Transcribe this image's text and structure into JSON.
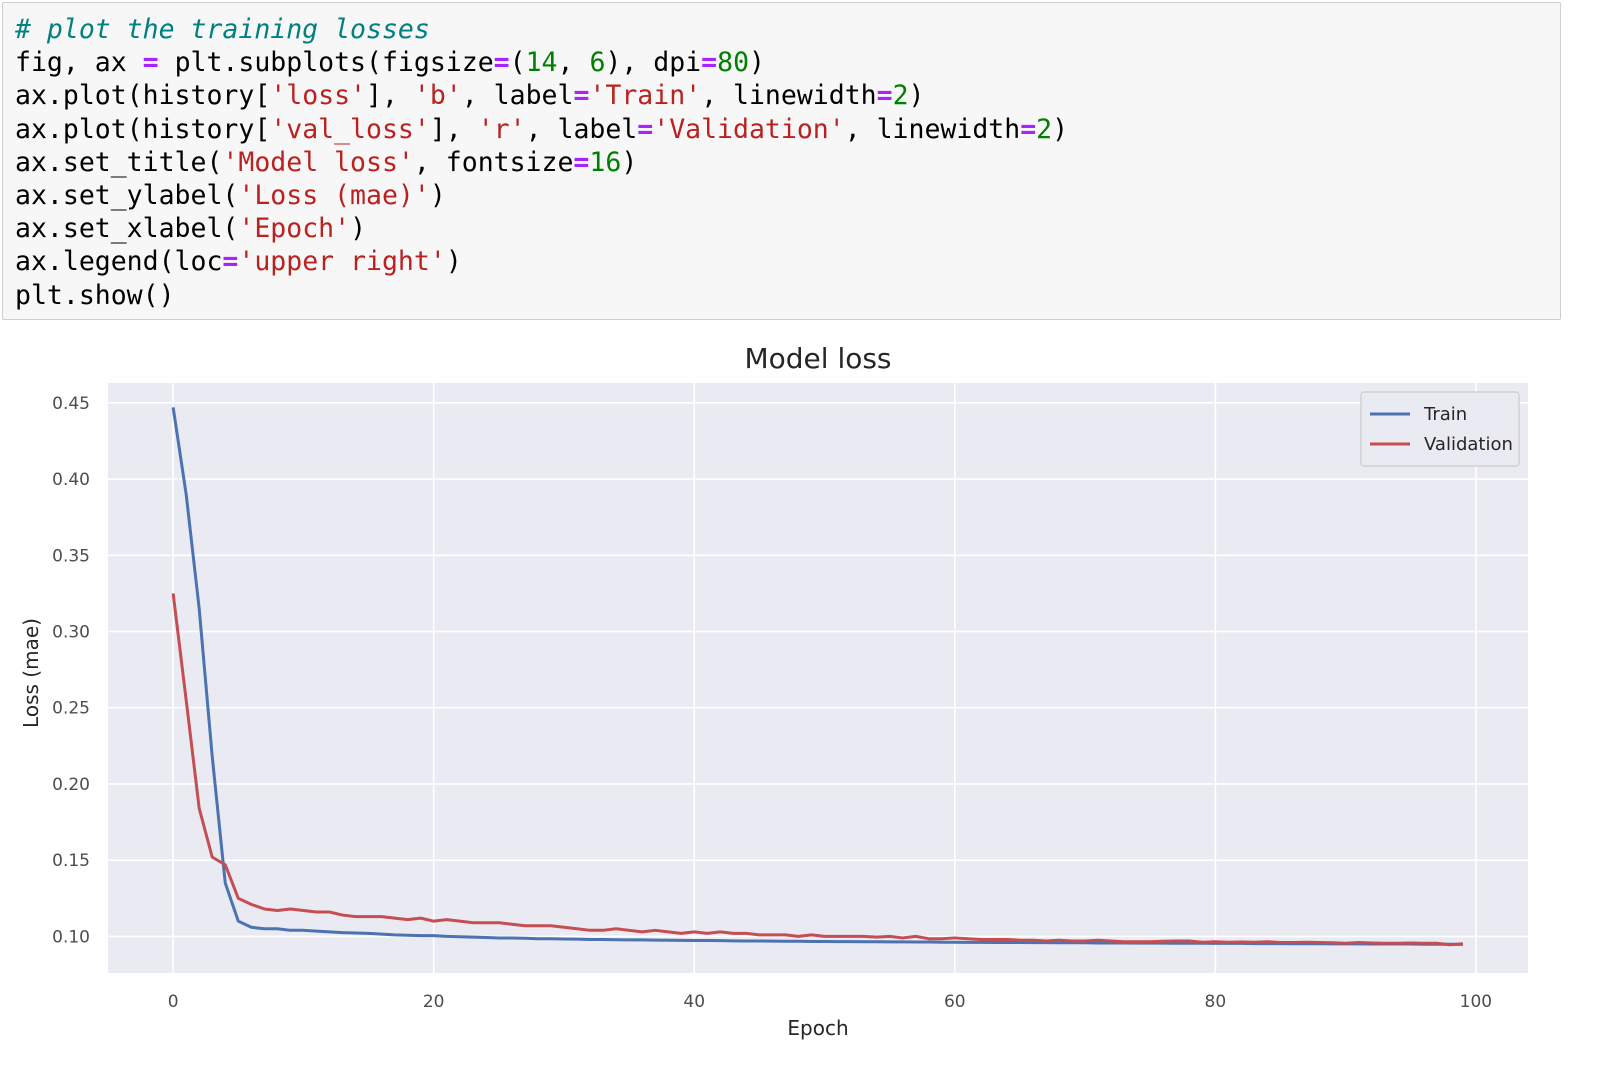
{
  "code_cell": {
    "lines": [
      [
        {
          "t": "# plot the training losses",
          "c": "comment"
        }
      ],
      [
        {
          "t": "fig, ax ",
          "c": "plain"
        },
        {
          "t": "=",
          "c": "op"
        },
        {
          "t": " plt.subplots(figsize",
          "c": "plain"
        },
        {
          "t": "=",
          "c": "op"
        },
        {
          "t": "(",
          "c": "plain"
        },
        {
          "t": "14",
          "c": "num"
        },
        {
          "t": ", ",
          "c": "plain"
        },
        {
          "t": "6",
          "c": "num"
        },
        {
          "t": "), dpi",
          "c": "plain"
        },
        {
          "t": "=",
          "c": "op"
        },
        {
          "t": "80",
          "c": "num"
        },
        {
          "t": ")",
          "c": "plain"
        }
      ],
      [
        {
          "t": "ax.plot(history[",
          "c": "plain"
        },
        {
          "t": "'loss'",
          "c": "str"
        },
        {
          "t": "], ",
          "c": "plain"
        },
        {
          "t": "'b'",
          "c": "str"
        },
        {
          "t": ", label",
          "c": "plain"
        },
        {
          "t": "=",
          "c": "op"
        },
        {
          "t": "'Train'",
          "c": "str"
        },
        {
          "t": ", linewidth",
          "c": "plain"
        },
        {
          "t": "=",
          "c": "op"
        },
        {
          "t": "2",
          "c": "num"
        },
        {
          "t": ")",
          "c": "plain"
        }
      ],
      [
        {
          "t": "ax.plot(history[",
          "c": "plain"
        },
        {
          "t": "'val_loss'",
          "c": "str"
        },
        {
          "t": "], ",
          "c": "plain"
        },
        {
          "t": "'r'",
          "c": "str"
        },
        {
          "t": ", label",
          "c": "plain"
        },
        {
          "t": "=",
          "c": "op"
        },
        {
          "t": "'Validation'",
          "c": "str"
        },
        {
          "t": ", linewidth",
          "c": "plain"
        },
        {
          "t": "=",
          "c": "op"
        },
        {
          "t": "2",
          "c": "num"
        },
        {
          "t": ")",
          "c": "plain"
        }
      ],
      [
        {
          "t": "ax.set_title(",
          "c": "plain"
        },
        {
          "t": "'Model loss'",
          "c": "str"
        },
        {
          "t": ", fontsize",
          "c": "plain"
        },
        {
          "t": "=",
          "c": "op"
        },
        {
          "t": "16",
          "c": "num"
        },
        {
          "t": ")",
          "c": "plain"
        }
      ],
      [
        {
          "t": "ax.set_ylabel(",
          "c": "plain"
        },
        {
          "t": "'Loss (mae)'",
          "c": "str"
        },
        {
          "t": ")",
          "c": "plain"
        }
      ],
      [
        {
          "t": "ax.set_xlabel(",
          "c": "plain"
        },
        {
          "t": "'Epoch'",
          "c": "str"
        },
        {
          "t": ")",
          "c": "plain"
        }
      ],
      [
        {
          "t": "ax.legend(loc",
          "c": "plain"
        },
        {
          "t": "=",
          "c": "op"
        },
        {
          "t": "'upper right'",
          "c": "str"
        },
        {
          "t": ")",
          "c": "plain"
        }
      ],
      [
        {
          "t": "plt.show()",
          "c": "plain"
        }
      ]
    ],
    "colors": {
      "comment": "#008080",
      "op": "#aa22ff",
      "str": "#ba2121",
      "num": "#008000",
      "plain": "#000000",
      "background": "#f7f7f7"
    }
  },
  "chart_data": {
    "type": "line",
    "title": "Model loss",
    "xlabel": "Epoch",
    "ylabel": "Loss (mae)",
    "xlim": [
      -5,
      104
    ],
    "ylim": [
      0.076,
      0.463
    ],
    "xticks": [
      0,
      20,
      40,
      60,
      80,
      100
    ],
    "yticks": [
      0.1,
      0.15,
      0.2,
      0.25,
      0.3,
      0.35,
      0.4,
      0.45
    ],
    "xtick_labels": [
      "0",
      "20",
      "40",
      "60",
      "80",
      "100"
    ],
    "ytick_labels": [
      "0.10",
      "0.15",
      "0.20",
      "0.25",
      "0.30",
      "0.35",
      "0.40",
      "0.45"
    ],
    "grid": true,
    "legend_position": "top-right",
    "background_color": "#eaeaf2",
    "x": [
      0,
      1,
      2,
      3,
      4,
      5,
      6,
      7,
      8,
      9,
      10,
      11,
      12,
      13,
      14,
      15,
      16,
      17,
      18,
      19,
      20,
      21,
      22,
      23,
      24,
      25,
      26,
      27,
      28,
      29,
      30,
      31,
      32,
      33,
      34,
      35,
      36,
      37,
      38,
      39,
      40,
      41,
      42,
      43,
      44,
      45,
      46,
      47,
      48,
      49,
      50,
      51,
      52,
      53,
      54,
      55,
      56,
      57,
      58,
      59,
      60,
      61,
      62,
      63,
      64,
      65,
      66,
      67,
      68,
      69,
      70,
      71,
      72,
      73,
      74,
      75,
      76,
      77,
      78,
      79,
      80,
      81,
      82,
      83,
      84,
      85,
      86,
      87,
      88,
      89,
      90,
      91,
      92,
      93,
      94,
      95,
      96,
      97,
      98,
      99
    ],
    "series": [
      {
        "name": "Train",
        "color": "#4c72b0",
        "values": [
          0.447,
          0.39,
          0.315,
          0.218,
          0.135,
          0.11,
          0.106,
          0.105,
          0.105,
          0.104,
          0.104,
          0.1035,
          0.103,
          0.1025,
          0.1022,
          0.102,
          0.1015,
          0.101,
          0.1008,
          0.1005,
          0.1005,
          0.1,
          0.0998,
          0.0995,
          0.0993,
          0.099,
          0.099,
          0.0988,
          0.0985,
          0.0985,
          0.0983,
          0.0982,
          0.098,
          0.098,
          0.0978,
          0.0977,
          0.0977,
          0.0976,
          0.0975,
          0.0974,
          0.0973,
          0.0973,
          0.0972,
          0.0971,
          0.097,
          0.097,
          0.0969,
          0.0968,
          0.0968,
          0.0967,
          0.0967,
          0.0966,
          0.0966,
          0.0965,
          0.0965,
          0.0964,
          0.0964,
          0.0963,
          0.0963,
          0.0962,
          0.0962,
          0.0961,
          0.0961,
          0.096,
          0.096,
          0.096,
          0.0959,
          0.0959,
          0.0958,
          0.0958,
          0.0958,
          0.0957,
          0.0957,
          0.0957,
          0.0956,
          0.0956,
          0.0956,
          0.0955,
          0.0955,
          0.0955,
          0.0954,
          0.0954,
          0.0954,
          0.0953,
          0.0953,
          0.0953,
          0.0952,
          0.0952,
          0.0952,
          0.0951,
          0.0951,
          0.0951,
          0.095,
          0.095,
          0.095,
          0.095,
          0.0949,
          0.0949,
          0.0949,
          0.0948
        ]
      },
      {
        "name": "Validation",
        "color": "#c44e52",
        "values": [
          0.325,
          0.255,
          0.184,
          0.152,
          0.147,
          0.125,
          0.121,
          0.118,
          0.117,
          0.118,
          0.117,
          0.116,
          0.116,
          0.114,
          0.113,
          0.113,
          0.113,
          0.112,
          0.111,
          0.112,
          0.11,
          0.111,
          0.11,
          0.109,
          0.109,
          0.109,
          0.108,
          0.107,
          0.107,
          0.107,
          0.106,
          0.105,
          0.104,
          0.104,
          0.105,
          0.104,
          0.103,
          0.104,
          0.103,
          0.102,
          0.103,
          0.102,
          0.103,
          0.102,
          0.102,
          0.101,
          0.101,
          0.101,
          0.1,
          0.101,
          0.1,
          0.1,
          0.1,
          0.1,
          0.0995,
          0.1,
          0.099,
          0.1,
          0.0985,
          0.0985,
          0.099,
          0.0985,
          0.098,
          0.098,
          0.098,
          0.0975,
          0.0975,
          0.097,
          0.0975,
          0.097,
          0.097,
          0.0975,
          0.097,
          0.0965,
          0.0965,
          0.0965,
          0.0968,
          0.097,
          0.097,
          0.0962,
          0.0965,
          0.0962,
          0.0963,
          0.0962,
          0.0965,
          0.096,
          0.096,
          0.0962,
          0.096,
          0.0958,
          0.0955,
          0.096,
          0.0957,
          0.0955,
          0.0955,
          0.0957,
          0.0955,
          0.0955,
          0.0945,
          0.0952
        ]
      }
    ]
  }
}
